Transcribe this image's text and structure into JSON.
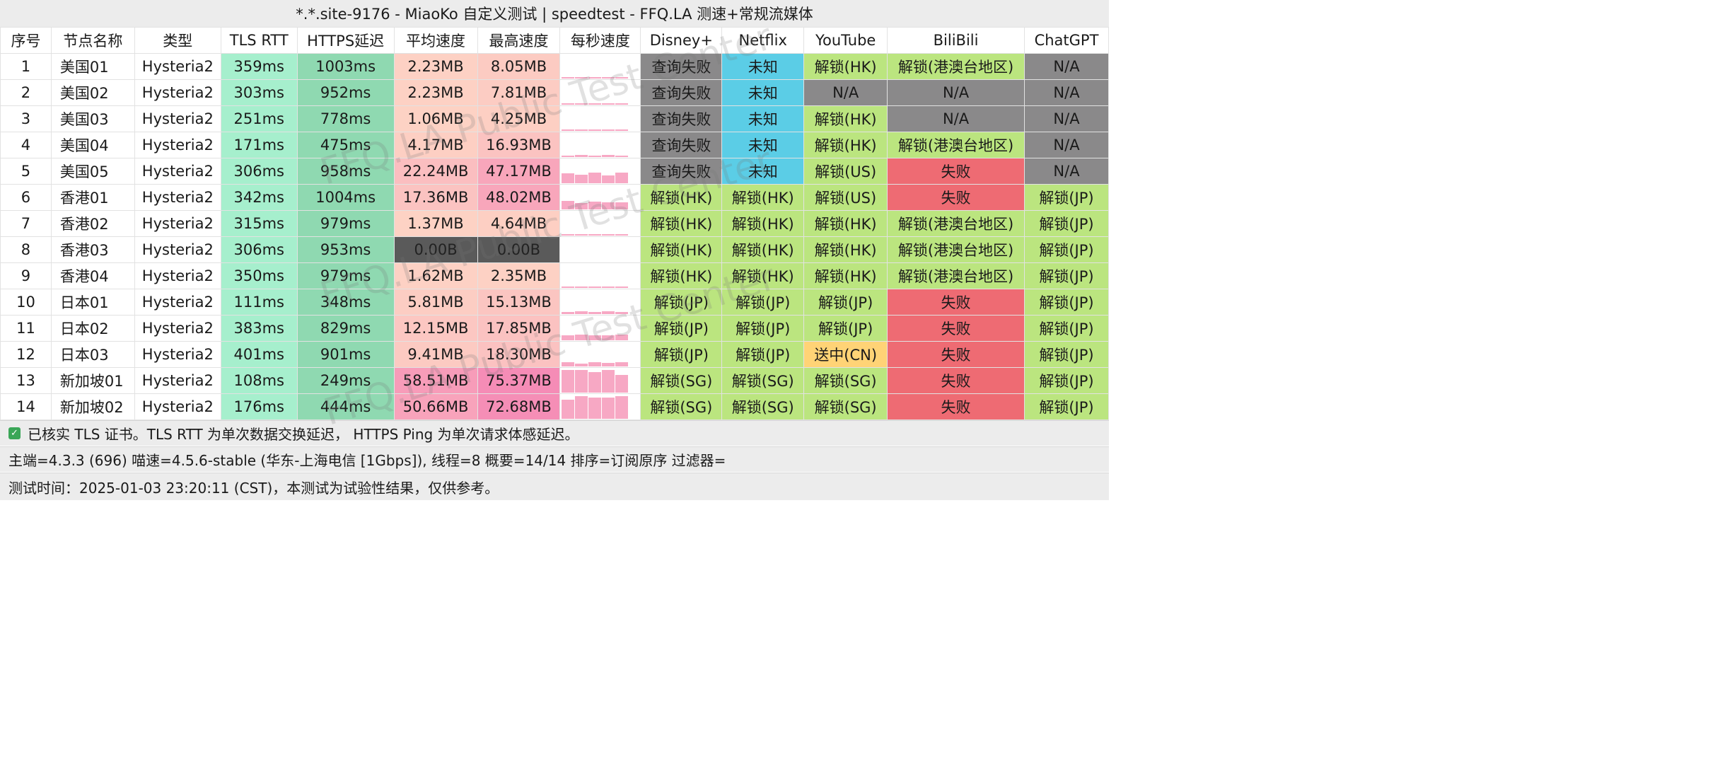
{
  "title": "*.*.site-9176 - MiaoKo 自定义测试 | speedtest - FFQ.LA 测速+常规流媒体",
  "columns": [
    "序号",
    "节点名称",
    "类型",
    "TLS RTT",
    "HTTPS延迟",
    "平均速度",
    "最高速度",
    "每秒速度",
    "Disney+",
    "Netflix",
    "YouTube",
    "BiliBili",
    "ChatGPT"
  ],
  "rows": [
    {
      "idx": "1",
      "name": "美国01",
      "type": "Hysteria2",
      "tls": "359ms",
      "https": "1003ms",
      "avg": "2.23MB",
      "max": "8.05MB",
      "disney": "查询失败",
      "netflix": "未知",
      "youtube": "解锁(HK)",
      "bili": "解锁(港澳台地区)",
      "gpt": "N/A"
    },
    {
      "idx": "2",
      "name": "美国02",
      "type": "Hysteria2",
      "tls": "303ms",
      "https": "952ms",
      "avg": "2.23MB",
      "max": "7.81MB",
      "disney": "查询失败",
      "netflix": "未知",
      "youtube": "N/A",
      "bili": "N/A",
      "gpt": "N/A"
    },
    {
      "idx": "3",
      "name": "美国03",
      "type": "Hysteria2",
      "tls": "251ms",
      "https": "778ms",
      "avg": "1.06MB",
      "max": "4.25MB",
      "disney": "查询失败",
      "netflix": "未知",
      "youtube": "解锁(HK)",
      "bili": "N/A",
      "gpt": "N/A"
    },
    {
      "idx": "4",
      "name": "美国04",
      "type": "Hysteria2",
      "tls": "171ms",
      "https": "475ms",
      "avg": "4.17MB",
      "max": "16.93MB",
      "disney": "查询失败",
      "netflix": "未知",
      "youtube": "解锁(HK)",
      "bili": "解锁(港澳台地区)",
      "gpt": "N/A"
    },
    {
      "idx": "5",
      "name": "美国05",
      "type": "Hysteria2",
      "tls": "306ms",
      "https": "958ms",
      "avg": "22.24MB",
      "max": "47.17MB",
      "disney": "查询失败",
      "netflix": "未知",
      "youtube": "解锁(US)",
      "bili": "失败",
      "gpt": "N/A"
    },
    {
      "idx": "6",
      "name": "香港01",
      "type": "Hysteria2",
      "tls": "342ms",
      "https": "1004ms",
      "avg": "17.36MB",
      "max": "48.02MB",
      "disney": "解锁(HK)",
      "netflix": "解锁(HK)",
      "youtube": "解锁(US)",
      "bili": "失败",
      "gpt": "解锁(JP)"
    },
    {
      "idx": "7",
      "name": "香港02",
      "type": "Hysteria2",
      "tls": "315ms",
      "https": "979ms",
      "avg": "1.37MB",
      "max": "4.64MB",
      "disney": "解锁(HK)",
      "netflix": "解锁(HK)",
      "youtube": "解锁(HK)",
      "bili": "解锁(港澳台地区)",
      "gpt": "解锁(JP)"
    },
    {
      "idx": "8",
      "name": "香港03",
      "type": "Hysteria2",
      "tls": "306ms",
      "https": "953ms",
      "avg": "0.00B",
      "max": "0.00B",
      "disney": "解锁(HK)",
      "netflix": "解锁(HK)",
      "youtube": "解锁(HK)",
      "bili": "解锁(港澳台地区)",
      "gpt": "解锁(JP)"
    },
    {
      "idx": "9",
      "name": "香港04",
      "type": "Hysteria2",
      "tls": "350ms",
      "https": "979ms",
      "avg": "1.62MB",
      "max": "2.35MB",
      "disney": "解锁(HK)",
      "netflix": "解锁(HK)",
      "youtube": "解锁(HK)",
      "bili": "解锁(港澳台地区)",
      "gpt": "解锁(JP)"
    },
    {
      "idx": "10",
      "name": "日本01",
      "type": "Hysteria2",
      "tls": "111ms",
      "https": "348ms",
      "avg": "5.81MB",
      "max": "15.13MB",
      "disney": "解锁(JP)",
      "netflix": "解锁(JP)",
      "youtube": "解锁(JP)",
      "bili": "失败",
      "gpt": "解锁(JP)"
    },
    {
      "idx": "11",
      "name": "日本02",
      "type": "Hysteria2",
      "tls": "383ms",
      "https": "829ms",
      "avg": "12.15MB",
      "max": "17.85MB",
      "disney": "解锁(JP)",
      "netflix": "解锁(JP)",
      "youtube": "解锁(JP)",
      "bili": "失败",
      "gpt": "解锁(JP)"
    },
    {
      "idx": "12",
      "name": "日本03",
      "type": "Hysteria2",
      "tls": "401ms",
      "https": "901ms",
      "avg": "9.41MB",
      "max": "18.30MB",
      "disney": "解锁(JP)",
      "netflix": "解锁(JP)",
      "youtube": "送中(CN)",
      "bili": "失败",
      "gpt": "解锁(JP)"
    },
    {
      "idx": "13",
      "name": "新加坡01",
      "type": "Hysteria2",
      "tls": "108ms",
      "https": "249ms",
      "avg": "58.51MB",
      "max": "75.37MB",
      "disney": "解锁(SG)",
      "netflix": "解锁(SG)",
      "youtube": "解锁(SG)",
      "bili": "失败",
      "gpt": "解锁(JP)"
    },
    {
      "idx": "14",
      "name": "新加坡02",
      "type": "Hysteria2",
      "tls": "176ms",
      "https": "444ms",
      "avg": "50.66MB",
      "max": "72.68MB",
      "disney": "解锁(SG)",
      "netflix": "解锁(SG)",
      "youtube": "解锁(SG)",
      "bili": "失败",
      "gpt": "解锁(JP)"
    }
  ],
  "footer": {
    "tls_note": "已核实 TLS 证书。TLS RTT 为单次数据交换延迟， HTTPS Ping 为单次请求体感延迟。",
    "info": "主端=4.3.3 (696) 喵速=4.5.6-stable (华东-上海电信 [1Gbps]), 线程=8 概要=14/14 排序=订阅原序 过滤器=",
    "time": "测试时间：2025-01-03 23:20:11 (CST)，本测试为试验性结果，仅供参考。"
  },
  "watermark": "FFQ.LA Public Test Center",
  "colors": {
    "tls_bg": "#a6efcd",
    "https_bg": "#8fd9b1",
    "speed_low": "#fdd3c4",
    "speed_high": "#f58cb6",
    "zero_bg": "#5a5a5a",
    "fail_query": "#8a898a",
    "unknown": "#5bcde6",
    "unlock": "#bbe57f",
    "fail": "#ee6b73",
    "sent_cn": "#ffd376",
    "na": "#8a898a"
  }
}
